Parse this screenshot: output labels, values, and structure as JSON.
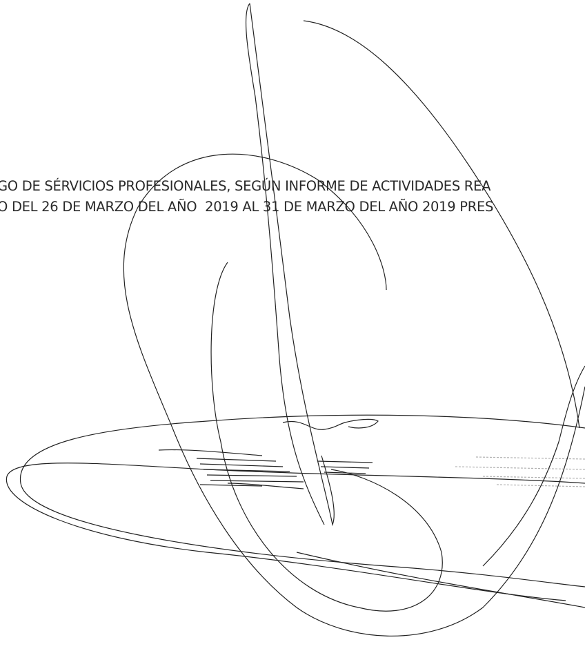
{
  "document": {
    "lines": [
      "GO DE SÉRVICIOS PROFESIONALES, SEGÚN INFORME DE ACTIVIDADES REA",
      "O DEL 26 DE MARZO DEL AÑO  2019 AL 31 DE MARZO DEL AÑO 2019 PRES"
    ]
  }
}
